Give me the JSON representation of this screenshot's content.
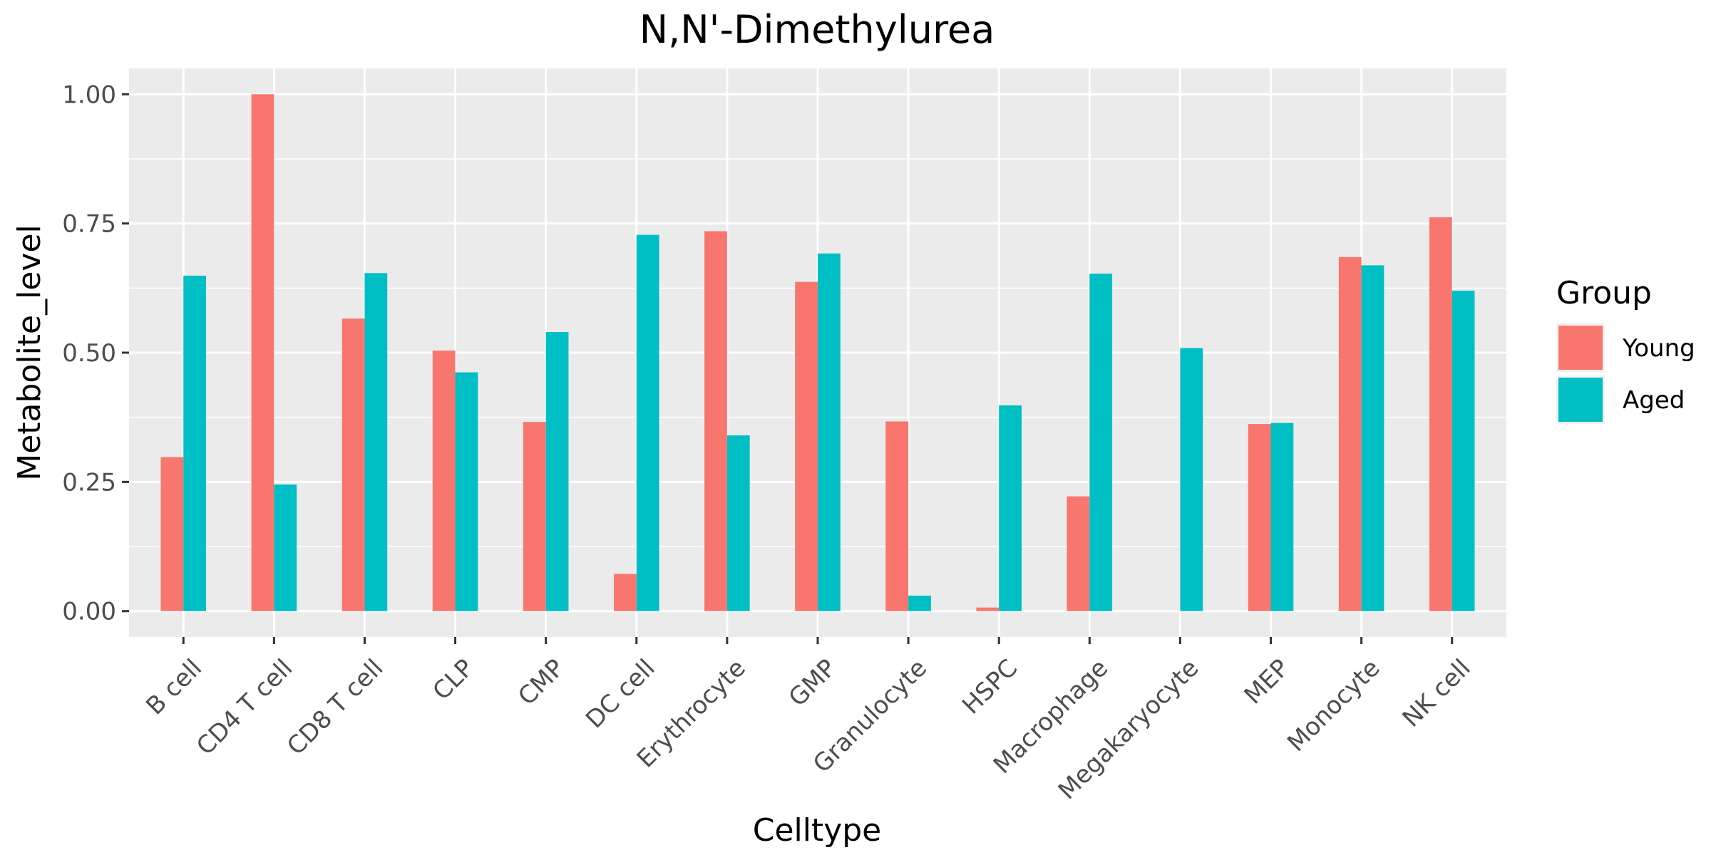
{
  "chart_data": {
    "type": "bar",
    "title": "N,N'-Dimethylurea",
    "xlabel": "Celltype",
    "ylabel": "Metabolite_level",
    "categories": [
      "B cell",
      "CD4 T cell",
      "CD8 T cell",
      "CLP",
      "CMP",
      "DC cell",
      "Erythrocyte",
      "GMP",
      "Granulocyte",
      "HSPC",
      "Macrophage",
      "Megakaryocyte",
      "MEP",
      "Monocyte",
      "NK cell"
    ],
    "series": [
      {
        "name": "Young",
        "color": "#F8766D",
        "values": [
          0.298,
          1.0,
          0.566,
          0.504,
          0.366,
          0.072,
          0.735,
          0.637,
          0.367,
          0.007,
          0.222,
          0.0,
          0.362,
          0.685,
          0.762
        ]
      },
      {
        "name": "Aged",
        "color": "#00BFC4",
        "values": [
          0.649,
          0.245,
          0.654,
          0.462,
          0.54,
          0.728,
          0.34,
          0.692,
          0.03,
          0.398,
          0.653,
          0.509,
          0.364,
          0.669,
          0.62
        ]
      }
    ],
    "ylim": [
      -0.05,
      1.05
    ],
    "yticks": [
      0.0,
      0.25,
      0.5,
      0.75,
      1.0
    ],
    "ytick_labels": [
      "0.00",
      "0.25",
      "0.50",
      "0.75",
      "1.00"
    ],
    "grid": true,
    "legend": {
      "title": "Group",
      "placement": "right"
    },
    "panel_background": "#EBEBEB"
  }
}
